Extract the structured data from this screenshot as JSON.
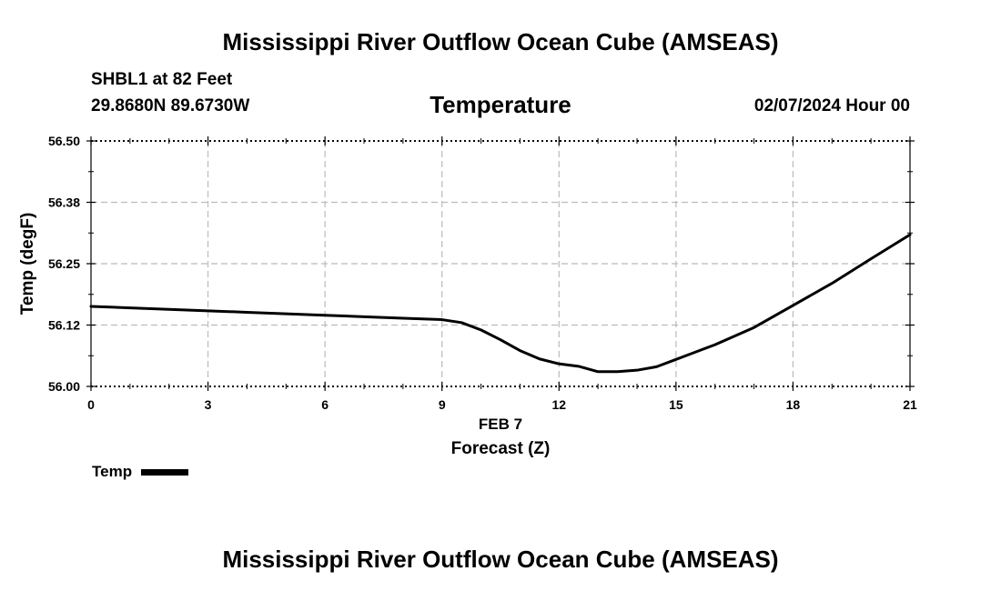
{
  "page": {
    "title_top": "Mississippi River Outflow Ocean Cube (AMSEAS)",
    "title_bottom": "Mississippi River Outflow Ocean Cube (AMSEAS)"
  },
  "header": {
    "station": "SHBL1 at 82 Feet",
    "coords": "29.8680N  89.6730W",
    "datetime": "02/07/2024 Hour 00"
  },
  "legend": {
    "label": "Temp"
  },
  "chart_data": {
    "type": "line",
    "title": "Temperature",
    "xlabel": "Forecast (Z)",
    "xsublabel": "FEB 7",
    "ylabel": "Temp (degF)",
    "xlim": [
      0,
      21
    ],
    "ylim": [
      56.0,
      56.5
    ],
    "x_ticks": [
      0,
      3,
      6,
      9,
      12,
      15,
      18,
      21
    ],
    "y_ticks": [
      56.0,
      56.125,
      56.25,
      56.375,
      56.5
    ],
    "y_tick_labels": [
      "56.00",
      "56.12",
      "56.25",
      "56.38",
      "56.50"
    ],
    "grid": true,
    "series": [
      {
        "name": "Temp",
        "color": "#000000",
        "x": [
          0,
          1,
          2,
          3,
          4,
          5,
          6,
          7,
          8,
          9,
          9.5,
          10,
          10.5,
          11,
          11.5,
          12,
          12.5,
          13,
          13.5,
          14,
          14.5,
          15,
          16,
          17,
          18,
          19,
          20,
          21
        ],
        "y": [
          56.163,
          56.16,
          56.157,
          56.154,
          56.151,
          56.148,
          56.145,
          56.142,
          56.139,
          56.136,
          56.13,
          56.115,
          56.095,
          56.073,
          56.056,
          56.046,
          56.041,
          56.03,
          56.03,
          56.033,
          56.04,
          56.055,
          56.085,
          56.12,
          56.165,
          56.21,
          56.26,
          56.309
        ]
      }
    ]
  }
}
